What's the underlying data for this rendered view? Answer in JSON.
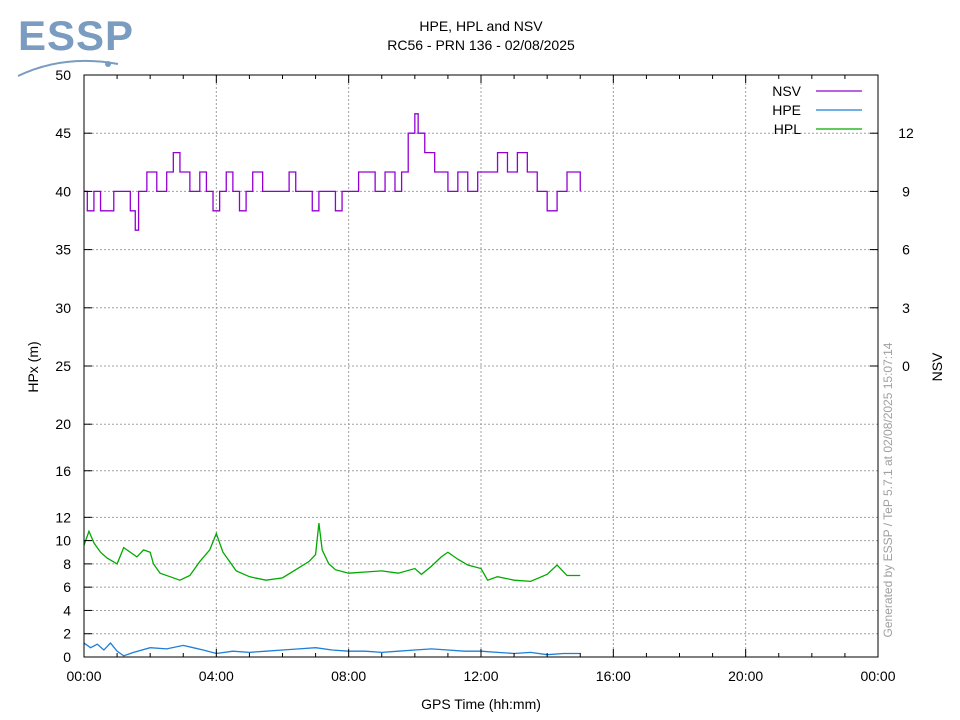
{
  "logo": {
    "text": "ESSP",
    "color": "#7a9cc0"
  },
  "watermark": "Generated by ESSP / TeP 5.7.1 at 02/08/2025 15:07:14",
  "chart_data": {
    "type": "line",
    "title": "HPE, HPL and NSV",
    "subtitle": "RC56 - PRN 136 - 02/08/2025",
    "xlabel": "GPS Time (hh:mm)",
    "ylabel": "HPx (m)",
    "y2label": "NSV",
    "grid": true,
    "legend_position": "top-right",
    "x_unit": "hours",
    "xlim": [
      0,
      24
    ],
    "x_ticks": [
      {
        "v": 0,
        "label": "00:00"
      },
      {
        "v": 4,
        "label": "04:00"
      },
      {
        "v": 8,
        "label": "08:00"
      },
      {
        "v": 12,
        "label": "12:00"
      },
      {
        "v": 16,
        "label": "16:00"
      },
      {
        "v": 20,
        "label": "20:00"
      },
      {
        "v": 24,
        "label": "00:00"
      }
    ],
    "y_scale": "piecewise-linear: 0-16 per 2 m band, 16-50 per 4-5 m band",
    "y_ticks": [
      0,
      2,
      4,
      6,
      8,
      10,
      12,
      16,
      20,
      25,
      30,
      35,
      40,
      45,
      50
    ],
    "y2_scale": "linear, 0 to 15",
    "y2_ticks": [
      0,
      3,
      6,
      9,
      12
    ],
    "series": [
      {
        "name": "NSV",
        "axis": "y2",
        "color": "#9400d3",
        "x": [
          0,
          0.1,
          0.3,
          0.5,
          0.9,
          1.2,
          1.4,
          1.55,
          1.65,
          1.9,
          2.2,
          2.5,
          2.7,
          2.9,
          3.2,
          3.5,
          3.7,
          3.9,
          4.1,
          4.3,
          4.5,
          4.7,
          4.9,
          5.1,
          5.4,
          5.8,
          6.2,
          6.4,
          6.7,
          6.9,
          7.1,
          7.3,
          7.6,
          7.8,
          8.0,
          8.3,
          8.6,
          8.8,
          9.1,
          9.4,
          9.6,
          9.8,
          10.0,
          10.1,
          10.3,
          10.6,
          10.8,
          11.0,
          11.3,
          11.6,
          11.9,
          12.2,
          12.5,
          12.8,
          13.1,
          13.4,
          13.7,
          14.0,
          14.3,
          14.6,
          15.0
        ],
        "y": [
          9,
          8,
          9,
          8,
          9,
          9,
          8,
          7,
          9,
          10,
          9,
          10,
          11,
          10,
          9,
          10,
          9,
          8,
          9,
          10,
          9,
          8,
          9,
          10,
          9,
          9,
          10,
          9,
          9,
          8,
          9,
          9,
          8,
          9,
          9,
          10,
          10,
          9,
          10,
          9,
          10,
          12,
          13,
          12,
          11,
          10,
          10,
          9,
          10,
          9,
          10,
          10,
          11,
          10,
          11,
          10,
          9,
          8,
          9,
          10,
          9
        ]
      },
      {
        "name": "HPE",
        "axis": "y",
        "color": "#1e7fd8",
        "x": [
          0,
          0.2,
          0.4,
          0.6,
          0.8,
          1.0,
          1.2,
          1.5,
          2.0,
          2.5,
          3.0,
          3.3,
          3.6,
          4.0,
          4.5,
          5.0,
          5.5,
          6.0,
          6.5,
          7.0,
          7.5,
          8.0,
          8.5,
          9.0,
          9.5,
          10.0,
          10.5,
          11.0,
          11.5,
          12.0,
          12.5,
          13.0,
          13.5,
          14.0,
          14.5,
          15.0
        ],
        "y": [
          1.2,
          0.8,
          1.1,
          0.6,
          1.2,
          0.5,
          0.1,
          0.4,
          0.8,
          0.7,
          1.0,
          0.8,
          0.6,
          0.3,
          0.5,
          0.4,
          0.5,
          0.6,
          0.7,
          0.8,
          0.6,
          0.5,
          0.5,
          0.4,
          0.5,
          0.6,
          0.7,
          0.6,
          0.5,
          0.5,
          0.4,
          0.3,
          0.4,
          0.2,
          0.3,
          0.3
        ]
      },
      {
        "name": "HPL",
        "axis": "y",
        "color": "#00aa00",
        "x": [
          0,
          0.15,
          0.3,
          0.5,
          0.7,
          1.0,
          1.2,
          1.4,
          1.6,
          1.8,
          2.0,
          2.1,
          2.3,
          2.6,
          2.9,
          3.2,
          3.5,
          3.8,
          4.0,
          4.2,
          4.4,
          4.6,
          5.0,
          5.5,
          6.0,
          6.4,
          6.8,
          7.0,
          7.1,
          7.2,
          7.4,
          7.6,
          8.0,
          8.5,
          9.0,
          9.5,
          10.0,
          10.2,
          10.5,
          10.8,
          11.0,
          11.3,
          11.6,
          12.0,
          12.2,
          12.5,
          13.0,
          13.5,
          14.0,
          14.3,
          14.6,
          15.0
        ],
        "y": [
          9.6,
          10.8,
          9.8,
          9.0,
          8.5,
          8.0,
          9.4,
          9.0,
          8.6,
          9.2,
          9.0,
          8.0,
          7.2,
          6.9,
          6.6,
          7.0,
          8.2,
          9.2,
          10.6,
          9.0,
          8.2,
          7.4,
          6.9,
          6.6,
          6.8,
          7.5,
          8.2,
          8.8,
          11.5,
          9.2,
          8.0,
          7.5,
          7.2,
          7.3,
          7.4,
          7.2,
          7.6,
          7.1,
          7.8,
          8.6,
          9.0,
          8.4,
          7.9,
          7.6,
          6.6,
          6.9,
          6.6,
          6.5,
          7.1,
          7.9,
          7.0,
          7.0
        ]
      }
    ]
  }
}
